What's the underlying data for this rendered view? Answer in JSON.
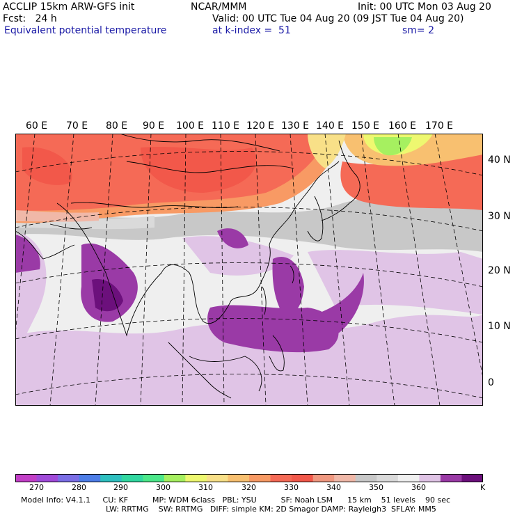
{
  "header": {
    "model_line": "ACCLIP 15km ARW-GFS init",
    "center": "NCAR/MMM",
    "init": "Init: 00 UTC Mon 03 Aug 20",
    "fcst": "Fcst:   24 h",
    "valid": "Valid: 00 UTC Tue 04 Aug 20 (09 JST Tue 04 Aug 20)",
    "field": "Equivalent potential temperature",
    "level": "at k-index =  51",
    "smooth": "sm= 2"
  },
  "map": {
    "lon_labels": [
      "60 E",
      "70 E",
      "80 E",
      "90 E",
      "100 E",
      "110 E",
      "120 E",
      "130 E",
      "140 E",
      "150 E",
      "160 E",
      "170 E"
    ],
    "lat_labels": [
      "40 N",
      "30 N",
      "20 N",
      "10 N",
      "0"
    ]
  },
  "colorbar": {
    "colors": [
      "#c23fc7",
      "#a04ad9",
      "#7b6ee6",
      "#4d7ee8",
      "#2ec0c0",
      "#31d8a0",
      "#4ce88a",
      "#a6f060",
      "#eef870",
      "#f8e088",
      "#f8c070",
      "#f89a64",
      "#f56a56",
      "#f2584a",
      "#f09880",
      "#f0b8a8",
      "#c8c8c8",
      "#dadada",
      "#f0f0f0",
      "#e0c4e6",
      "#9a3aa6",
      "#6c107c"
    ],
    "tick_labels": [
      "270",
      "280",
      "290",
      "300",
      "310",
      "320",
      "330",
      "340",
      "350",
      "360"
    ],
    "unit": "K"
  },
  "footer": {
    "line1": "Model Info: V4.1.1     CU: KF          MP: WDM 6class   PBL: YSU          SF: Noah LSM      15 km    51 levels    90 sec",
    "line2": "LW: RRTMG    SW: RRTMG   DIFF: simple KM: 2D Smagor DAMP: Rayleigh3  SFLAY: MM5"
  }
}
